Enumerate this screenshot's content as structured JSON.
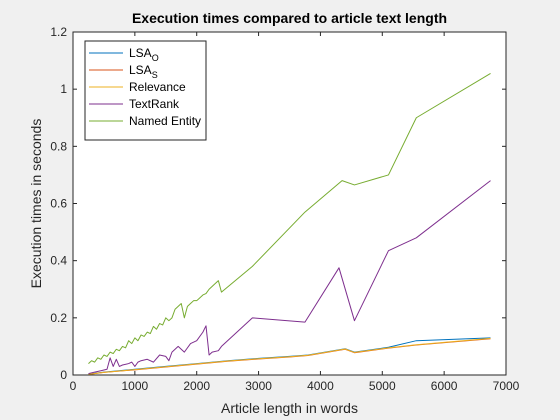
{
  "chart_data": {
    "type": "line",
    "title": "Execution times compared to article text length",
    "xlabel": "Article length in words",
    "ylabel": "Execution times in seconds",
    "xlim": [
      0,
      7000
    ],
    "ylim": [
      0,
      1.2
    ],
    "xticks": [
      0,
      1000,
      2000,
      3000,
      4000,
      5000,
      6000,
      7000
    ],
    "xtick_labels": [
      "0",
      "1000",
      "2000",
      "3000",
      "4000",
      "5000",
      "6000",
      "7000"
    ],
    "yticks": [
      0,
      0.2,
      0.4,
      0.6,
      0.8,
      1,
      1.2
    ],
    "ytick_labels": [
      "0",
      "0.2",
      "0.4",
      "0.6",
      "0.8",
      "1",
      "1.2"
    ],
    "grid": false,
    "legend_position": "top-left",
    "series": [
      {
        "name": "LSA",
        "name_sub": "O",
        "color": "#0072BD",
        "x": [
          250,
          500,
          1000,
          1500,
          2000,
          2500,
          3000,
          3500,
          3800,
          4400,
          4550,
          5100,
          5550,
          6750
        ],
        "y": [
          0.003,
          0.01,
          0.02,
          0.03,
          0.04,
          0.05,
          0.058,
          0.065,
          0.07,
          0.092,
          0.08,
          0.097,
          0.12,
          0.13
        ]
      },
      {
        "name": "LSA",
        "name_sub": "S",
        "color": "#D95319",
        "x": [
          250,
          500,
          1000,
          1500,
          2000,
          2500,
          3000,
          3500,
          3800,
          4400,
          4550,
          5100,
          5550,
          6750
        ],
        "y": [
          0.002,
          0.009,
          0.018,
          0.028,
          0.038,
          0.048,
          0.056,
          0.063,
          0.068,
          0.09,
          0.078,
          0.094,
          0.105,
          0.127
        ]
      },
      {
        "name": "Relevance",
        "name_sub": "",
        "color": "#EDB120",
        "x": [
          250,
          500,
          1000,
          1500,
          2000,
          2500,
          3000,
          3500,
          3800,
          4400,
          4550,
          5100,
          5550,
          6750
        ],
        "y": [
          0.002,
          0.009,
          0.019,
          0.029,
          0.039,
          0.049,
          0.057,
          0.064,
          0.069,
          0.091,
          0.079,
          0.095,
          0.106,
          0.128
        ]
      },
      {
        "name": "TextRank",
        "name_sub": "",
        "color": "#7E2F8E",
        "x": [
          250,
          350,
          450,
          550,
          600,
          650,
          700,
          750,
          800,
          900,
          950,
          1000,
          1050,
          1100,
          1200,
          1300,
          1400,
          1500,
          1550,
          1600,
          1700,
          1750,
          1800,
          1900,
          2000,
          2100,
          2150,
          2200,
          2250,
          2350,
          2400,
          2900,
          3750,
          4300,
          4550,
          5100,
          5550,
          6750
        ],
        "y": [
          0.005,
          0.01,
          0.015,
          0.02,
          0.06,
          0.03,
          0.055,
          0.03,
          0.035,
          0.04,
          0.045,
          0.03,
          0.045,
          0.05,
          0.055,
          0.045,
          0.07,
          0.065,
          0.05,
          0.08,
          0.1,
          0.09,
          0.08,
          0.11,
          0.12,
          0.15,
          0.172,
          0.07,
          0.08,
          0.085,
          0.1,
          0.2,
          0.185,
          0.375,
          0.19,
          0.435,
          0.48,
          0.68
        ]
      },
      {
        "name": "Named Entity",
        "name_sub": "",
        "color": "#77AC30",
        "x": [
          250,
          300,
          350,
          400,
          450,
          500,
          550,
          600,
          650,
          700,
          750,
          800,
          850,
          900,
          950,
          1000,
          1050,
          1100,
          1150,
          1200,
          1250,
          1300,
          1350,
          1400,
          1450,
          1500,
          1550,
          1600,
          1650,
          1700,
          1750,
          1800,
          1850,
          1900,
          1950,
          2000,
          2050,
          2100,
          2150,
          2200,
          2250,
          2300,
          2350,
          2400,
          2900,
          3750,
          4350,
          4550,
          5100,
          5550,
          6750
        ],
        "y": [
          0.04,
          0.05,
          0.045,
          0.06,
          0.055,
          0.07,
          0.065,
          0.08,
          0.075,
          0.09,
          0.085,
          0.1,
          0.095,
          0.12,
          0.11,
          0.13,
          0.12,
          0.14,
          0.135,
          0.15,
          0.145,
          0.17,
          0.16,
          0.18,
          0.175,
          0.2,
          0.19,
          0.2,
          0.23,
          0.24,
          0.25,
          0.2,
          0.24,
          0.25,
          0.26,
          0.26,
          0.27,
          0.28,
          0.285,
          0.3,
          0.31,
          0.32,
          0.33,
          0.29,
          0.38,
          0.57,
          0.68,
          0.665,
          0.7,
          0.9,
          1.055
        ]
      }
    ]
  }
}
